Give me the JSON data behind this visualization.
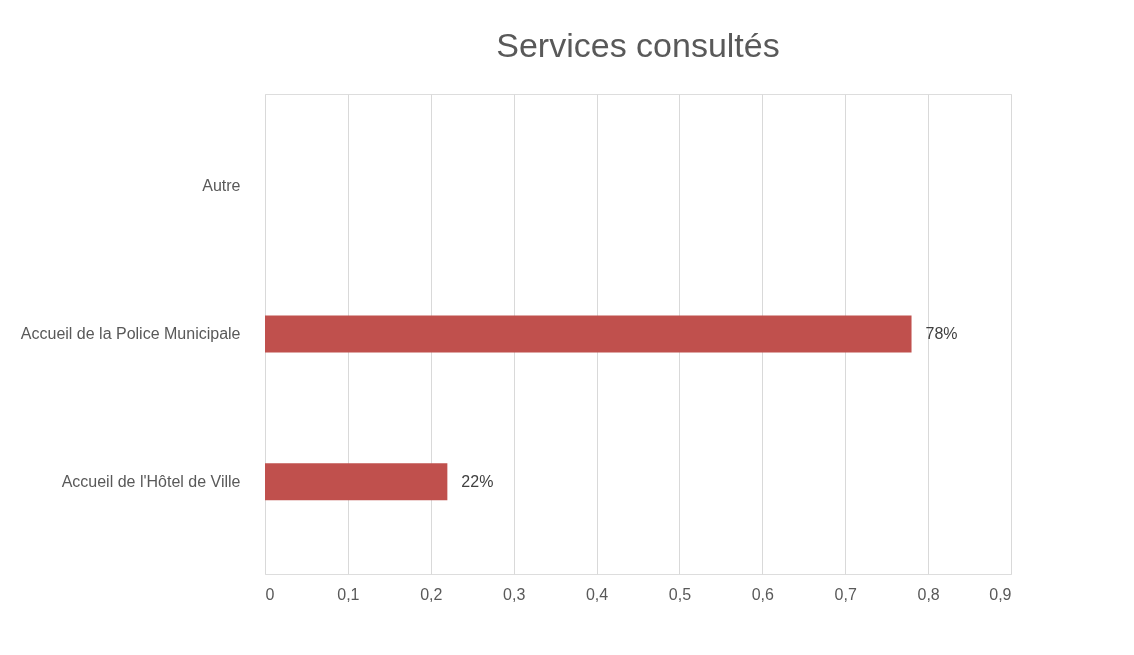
{
  "chart_data": {
    "type": "bar",
    "orientation": "horizontal",
    "title": "Services consultés",
    "categories": [
      "Autre",
      "Accueil de la Police Municipale",
      "Accueil de l'Hôtel de Ville"
    ],
    "values": [
      null,
      0.78,
      0.22
    ],
    "value_labels": [
      null,
      "78%",
      "22%"
    ],
    "color": "#c0504d",
    "xlim": [
      0,
      0.9
    ],
    "xticks": [
      0,
      {
        "value": 0.1,
        "label": "0,1"
      },
      {
        "value": 0.2,
        "label": "0,2"
      },
      {
        "value": 0.3,
        "label": "0,3"
      },
      {
        "value": 0.4,
        "label": "0,4"
      },
      {
        "value": 0.5,
        "label": "0,5"
      },
      {
        "value": 0.6,
        "label": "0,6"
      },
      {
        "value": 0.7,
        "label": "0,7"
      },
      {
        "value": 0.8,
        "label": "0,8"
      },
      {
        "value": 0.9,
        "label": "0,9"
      }
    ],
    "grid": "x"
  }
}
